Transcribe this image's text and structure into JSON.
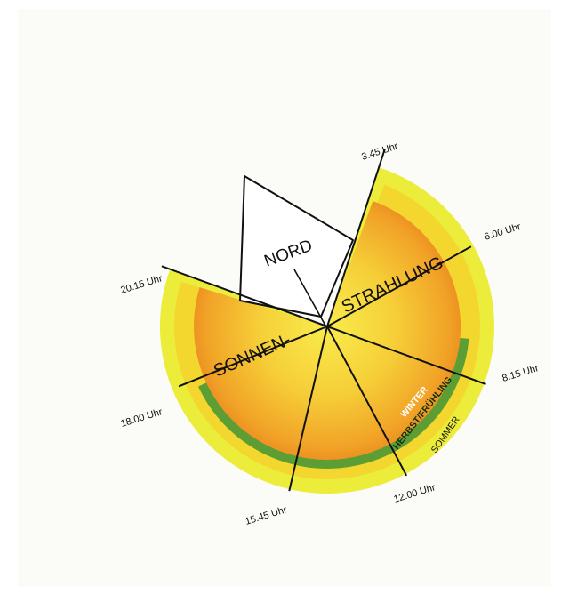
{
  "colors": {
    "outer_ring": "#ecec3a",
    "summer_ring": "#f4d72e",
    "green_ring": "#5c9e34",
    "blue_ring": "#7aa2dd",
    "orange_mid": "#f1a327",
    "orange_dark": "#e87b1d",
    "yellow_center": "#f7e142",
    "ink": "#111111"
  },
  "diagram": {
    "north_label": "NORD",
    "sun_label_1": "SONNEN-",
    "sun_label_2": "STRAHLUNG",
    "seasons": {
      "winter": "WINTER",
      "spring_autumn": "HERBST/FRÜHLING",
      "summer": "SOMMER"
    },
    "times": [
      {
        "key": "t0345",
        "label": "3.45 Uhr"
      },
      {
        "key": "t0600",
        "label": "6.00 Uhr"
      },
      {
        "key": "t0815",
        "label": "8.15 Uhr"
      },
      {
        "key": "t1200",
        "label": "12.00 Uhr"
      },
      {
        "key": "t1545",
        "label": "15.45 Uhr"
      },
      {
        "key": "t1800",
        "label": "18.00 Uhr"
      },
      {
        "key": "t2015",
        "label": "20.15 Uhr"
      }
    ]
  }
}
